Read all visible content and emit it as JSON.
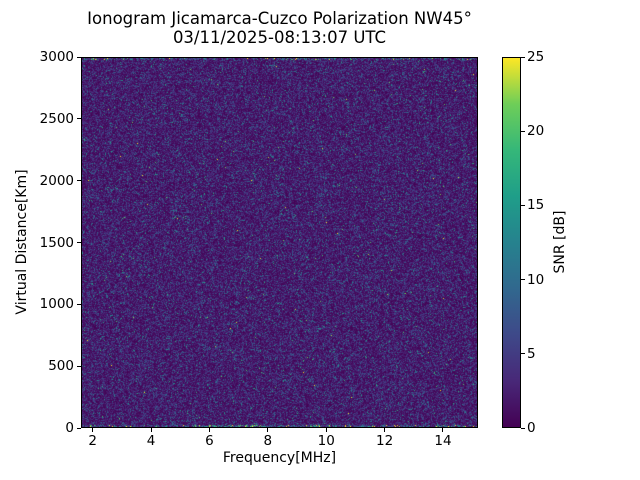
{
  "figure": {
    "background": "#ffffff",
    "text_color": "#000000"
  },
  "chart_data": {
    "type": "heatmap",
    "title": "Ionogram Jicamarca-Cuzco Polarization NW45°",
    "subtitle": "03/11/2025-08:13:07 UTC",
    "xlabel": "Frequency[MHz]",
    "ylabel": "Virtual Distance[Km]",
    "xlim": [
      1.6,
      15.2
    ],
    "ylim": [
      0,
      3000
    ],
    "xticks": [
      2,
      4,
      6,
      8,
      10,
      12,
      14
    ],
    "yticks": [
      0,
      500,
      1000,
      1500,
      2000,
      2500,
      3000
    ],
    "grid": false,
    "legend": "none",
    "colorbar": {
      "label": "SNR [dB]",
      "min": 0,
      "max": 25,
      "ticks": [
        0,
        5,
        10,
        15,
        20,
        25
      ],
      "colormap": "viridis",
      "position": "right"
    },
    "content": "Uniform random background noise speckle over the whole frequency/virtual-distance map; no coherent ionospheric echo traces; slightly enhanced noise with a few bright pixels along the 0 km bottom row near 5.5-7.5 MHz and along the 3000 km top row.",
    "noise_model": {
      "distribution": "exponential",
      "mean_db": 2.8,
      "bottom_row_mean_db": 7,
      "top_row_mean_db": 5,
      "seed": 20250311
    },
    "viridis_stops": [
      {
        "t": 0.0,
        "color": "#440154"
      },
      {
        "t": 0.125,
        "color": "#482878"
      },
      {
        "t": 0.25,
        "color": "#3e4989"
      },
      {
        "t": 0.375,
        "color": "#31688e"
      },
      {
        "t": 0.5,
        "color": "#26828e"
      },
      {
        "t": 0.625,
        "color": "#1f9e89"
      },
      {
        "t": 0.75,
        "color": "#35b779"
      },
      {
        "t": 0.875,
        "color": "#6ece58"
      },
      {
        "t": 1.0,
        "color": "#fde725"
      }
    ]
  }
}
